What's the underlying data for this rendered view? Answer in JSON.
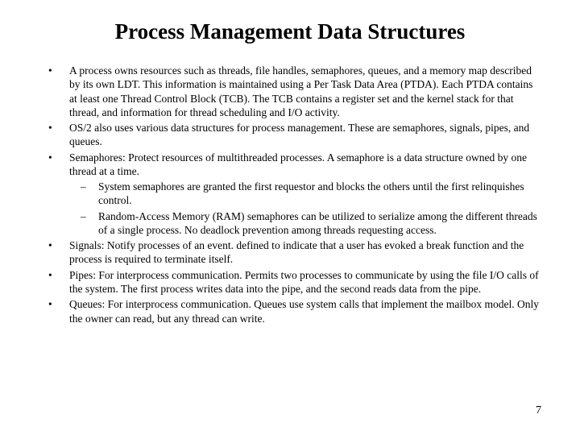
{
  "title": "Process Management Data Structures",
  "bullets": [
    {
      "text": "A process owns resources such as threads, file handles, semaphores, queues, and a memory map described by its own LDT. This information is maintained using a Per Task Data Area (PTDA). Each PTDA contains at least one Thread Control Block (TCB). The TCB contains a register set and the kernel stack for that thread, and information for thread scheduling and I/O activity."
    },
    {
      "text": "OS/2 also uses various data structures for process management. These are semaphores, signals, pipes, and queues."
    },
    {
      "text": "Semaphores: Protect resources of multithreaded processes. A semaphore is a data structure owned by one thread at a time.",
      "sub": [
        "System semaphores are granted the first requestor and blocks the others until the first relinquishes control.",
        "Random-Access Memory (RAM) semaphores can be utilized to serialize among the different threads of a single process. No deadlock prevention among threads requesting access."
      ]
    },
    {
      "text": "Signals: Notify processes of an event. defined to indicate that a user has evoked a break function and the process is required to terminate itself."
    },
    {
      "text": "Pipes: For interprocess communication. Permits two processes to communicate by using the file I/O calls of the system. The first process writes data into the pipe, and the second reads data from the pipe."
    },
    {
      "text": "Queues: For interprocess communication. Queues use system calls that implement the mailbox model. Only the owner can read, but any thread can write."
    }
  ],
  "pageNumber": "7",
  "colors": {
    "background": "#ffffff",
    "text": "#000000"
  },
  "typography": {
    "title_fontsize": 27,
    "body_fontsize": 13.5,
    "font_family": "Times New Roman"
  }
}
